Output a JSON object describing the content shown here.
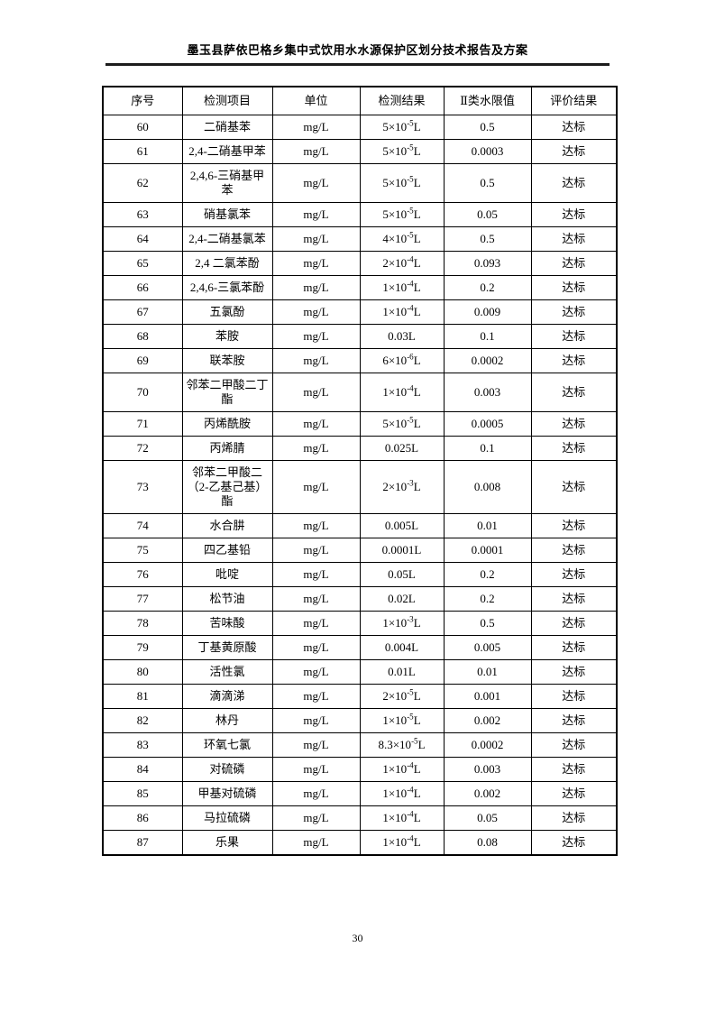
{
  "header": {
    "title": "墨玉县萨依巴格乡集中式饮用水水源保护区划分技术报告及方案"
  },
  "footer": {
    "page_number": "30"
  },
  "table": {
    "columns": [
      "序号",
      "检测项目",
      "单位",
      "检测结果",
      "Ⅱ类水限值",
      "评价结果"
    ],
    "rows": [
      [
        "60",
        "二硝基苯",
        "mg/L",
        "5×10^{-5}L",
        "0.5",
        "达标"
      ],
      [
        "61",
        "2,4-二硝基甲苯",
        "mg/L",
        "5×10^{-5}L",
        "0.0003",
        "达标"
      ],
      [
        "62",
        "2,4,6-三硝基甲苯",
        "mg/L",
        "5×10^{-5}L",
        "0.5",
        "达标"
      ],
      [
        "63",
        "硝基氯苯",
        "mg/L",
        "5×10^{-5}L",
        "0.05",
        "达标"
      ],
      [
        "64",
        "2,4-二硝基氯苯",
        "mg/L",
        "4×10^{-5}L",
        "0.5",
        "达标"
      ],
      [
        "65",
        "2,4 二氯苯酚",
        "mg/L",
        "2×10^{-4}L",
        "0.093",
        "达标"
      ],
      [
        "66",
        "2,4,6-三氯苯酚",
        "mg/L",
        "1×10^{-4}L",
        "0.2",
        "达标"
      ],
      [
        "67",
        "五氯酚",
        "mg/L",
        "1×10^{-4}L",
        "0.009",
        "达标"
      ],
      [
        "68",
        "苯胺",
        "mg/L",
        "0.03L",
        "0.1",
        "达标"
      ],
      [
        "69",
        "联苯胺",
        "mg/L",
        "6×10^{-6}L",
        "0.0002",
        "达标"
      ],
      [
        "70",
        "邻苯二甲酸二丁酯",
        "mg/L",
        "1×10^{-4}L",
        "0.003",
        "达标"
      ],
      [
        "71",
        "丙烯酰胺",
        "mg/L",
        "5×10^{-5}L",
        "0.0005",
        "达标"
      ],
      [
        "72",
        "丙烯腈",
        "mg/L",
        "0.025L",
        "0.1",
        "达标"
      ],
      [
        "73",
        "邻苯二甲酸二（2-乙基己基）酯",
        "mg/L",
        "2×10^{-3}L",
        "0.008",
        "达标"
      ],
      [
        "74",
        "水合肼",
        "mg/L",
        "0.005L",
        "0.01",
        "达标"
      ],
      [
        "75",
        "四乙基铅",
        "mg/L",
        "0.0001L",
        "0.0001",
        "达标"
      ],
      [
        "76",
        "吡啶",
        "mg/L",
        "0.05L",
        "0.2",
        "达标"
      ],
      [
        "77",
        "松节油",
        "mg/L",
        "0.02L",
        "0.2",
        "达标"
      ],
      [
        "78",
        "苦味酸",
        "mg/L",
        "1×10^{-3}L",
        "0.5",
        "达标"
      ],
      [
        "79",
        "丁基黄原酸",
        "mg/L",
        "0.004L",
        "0.005",
        "达标"
      ],
      [
        "80",
        "活性氯",
        "mg/L",
        "0.01L",
        "0.01",
        "达标"
      ],
      [
        "81",
        "滴滴涕",
        "mg/L",
        "2×10^{-5}L",
        "0.001",
        "达标"
      ],
      [
        "82",
        "林丹",
        "mg/L",
        "1×10^{-5}L",
        "0.002",
        "达标"
      ],
      [
        "83",
        "环氧七氯",
        "mg/L",
        "8.3×10^{-5}L",
        "0.0002",
        "达标"
      ],
      [
        "84",
        "对硫磷",
        "mg/L",
        "1×10^{-4}L",
        "0.003",
        "达标"
      ],
      [
        "85",
        "甲基对硫磷",
        "mg/L",
        "1×10^{-4}L",
        "0.002",
        "达标"
      ],
      [
        "86",
        "马拉硫磷",
        "mg/L",
        "1×10^{-4}L",
        "0.05",
        "达标"
      ],
      [
        "87",
        "乐果",
        "mg/L",
        "1×10^{-4}L",
        "0.08",
        "达标"
      ]
    ]
  }
}
